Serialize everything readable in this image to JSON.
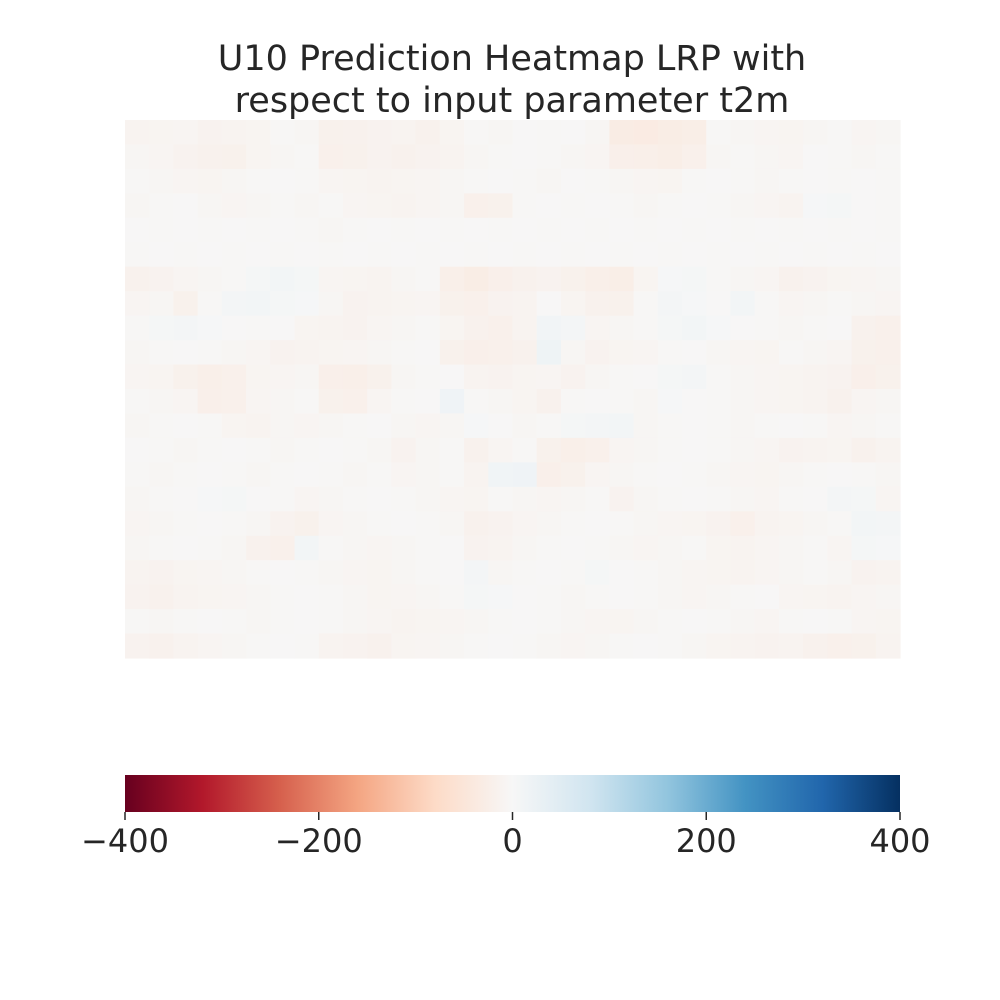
{
  "chart_data": {
    "type": "heatmap",
    "title_lines": [
      "U10 Prediction Heatmap LRP with",
      "respect to input parameter t2m"
    ],
    "xlabel": "",
    "ylabel": "",
    "grid": false,
    "value_range": [
      -400,
      400
    ],
    "colormap": "RdBu",
    "colorbar": {
      "orientation": "horizontal",
      "placement": "bottom",
      "ticks": [
        -400,
        -200,
        0,
        200,
        400
      ],
      "tick_labels": [
        "−400",
        "−200",
        "0",
        "200",
        "400"
      ],
      "stops": [
        "#67001f",
        "#b2182b",
        "#d6604d",
        "#f4a582",
        "#fddbc7",
        "#f7f7f7",
        "#d1e5f0",
        "#92c5de",
        "#4393c3",
        "#2166ac",
        "#053061"
      ]
    },
    "shape": [
      22,
      32
    ],
    "values": [
      [
        -12,
        -10,
        -8,
        -14,
        -12,
        -10,
        -4,
        -6,
        -18,
        -16,
        -14,
        -12,
        -16,
        -10,
        -4,
        -6,
        -2,
        -4,
        -2,
        -6,
        -32,
        -34,
        -30,
        -26,
        -4,
        -6,
        -8,
        -10,
        -6,
        -4,
        -8,
        -6
      ],
      [
        -6,
        -8,
        -14,
        -16,
        -18,
        -10,
        -6,
        -4,
        -20,
        -18,
        -14,
        -16,
        -14,
        -12,
        -6,
        -4,
        -2,
        -4,
        -6,
        -8,
        -22,
        -24,
        -26,
        -20,
        -6,
        -4,
        -6,
        -8,
        -2,
        -4,
        -6,
        -4
      ],
      [
        -4,
        -6,
        -8,
        -10,
        -6,
        -4,
        -2,
        -4,
        -8,
        -10,
        -12,
        -10,
        -8,
        -6,
        -4,
        -2,
        -4,
        -6,
        -2,
        -4,
        -6,
        -8,
        -10,
        -4,
        -2,
        -4,
        -6,
        -4,
        -2,
        -4,
        -2,
        -4
      ],
      [
        -6,
        -4,
        -2,
        -6,
        -8,
        -6,
        -4,
        -6,
        -4,
        -8,
        -10,
        -12,
        -8,
        -6,
        -20,
        -18,
        -4,
        -2,
        -4,
        -2,
        -4,
        -6,
        -4,
        -2,
        -4,
        -6,
        -8,
        -12,
        4,
        6,
        -2,
        -4
      ],
      [
        -2,
        -4,
        -2,
        -4,
        -2,
        -4,
        -2,
        -4,
        -6,
        -4,
        -2,
        -4,
        -2,
        -4,
        -2,
        -4,
        -2,
        -4,
        -2,
        -4,
        -2,
        -4,
        -2,
        -4,
        -2,
        -4,
        -2,
        -4,
        -2,
        -4,
        -2,
        -4
      ],
      [
        -4,
        -2,
        -4,
        -2,
        -4,
        -2,
        -4,
        -2,
        -4,
        -2,
        -4,
        -2,
        -4,
        -2,
        -4,
        -2,
        -4,
        -2,
        -4,
        -2,
        -4,
        -2,
        -4,
        -2,
        -4,
        -2,
        -4,
        -2,
        -4,
        -2,
        -4,
        -2
      ],
      [
        -16,
        -14,
        -8,
        -6,
        -4,
        6,
        10,
        6,
        -8,
        -10,
        -12,
        -6,
        -4,
        -24,
        -30,
        -22,
        -16,
        -14,
        -18,
        -24,
        -26,
        -10,
        4,
        6,
        -4,
        -6,
        -8,
        -16,
        -14,
        -10,
        -8,
        -6
      ],
      [
        -8,
        -6,
        -18,
        -4,
        8,
        10,
        6,
        4,
        -6,
        -14,
        -12,
        -10,
        -8,
        -18,
        -20,
        -14,
        -12,
        -2,
        -10,
        -16,
        -18,
        -4,
        8,
        4,
        -2,
        10,
        -4,
        -8,
        -6,
        -4,
        -6,
        -8
      ],
      [
        -4,
        6,
        8,
        4,
        -2,
        -4,
        -2,
        -10,
        -12,
        -14,
        -8,
        -6,
        -4,
        -10,
        -16,
        -20,
        -12,
        12,
        8,
        -8,
        -6,
        -4,
        6,
        10,
        4,
        -2,
        -4,
        -6,
        -4,
        -2,
        -16,
        -20
      ],
      [
        -6,
        -4,
        -2,
        -4,
        -6,
        -8,
        -14,
        -12,
        -10,
        -8,
        -6,
        -4,
        -2,
        -18,
        -22,
        -20,
        -16,
        18,
        -6,
        -14,
        -10,
        -8,
        -4,
        -2,
        -6,
        -8,
        -10,
        -4,
        -6,
        -8,
        -18,
        -20
      ],
      [
        -8,
        -10,
        -18,
        -24,
        -20,
        -10,
        -8,
        -6,
        -22,
        -24,
        -18,
        -6,
        -4,
        -2,
        -12,
        -14,
        -10,
        -8,
        -14,
        -6,
        -4,
        -2,
        6,
        8,
        -4,
        -6,
        -8,
        -10,
        -12,
        -14,
        -22,
        -18
      ],
      [
        -4,
        -6,
        -8,
        -22,
        -20,
        -8,
        -6,
        -4,
        -18,
        -20,
        -8,
        -4,
        -2,
        16,
        -4,
        -6,
        -10,
        -16,
        -4,
        -2,
        -4,
        -6,
        4,
        -2,
        -4,
        -6,
        -8,
        -10,
        -12,
        -16,
        -8,
        -6
      ],
      [
        -6,
        -4,
        -2,
        -4,
        -10,
        -12,
        -6,
        -8,
        -6,
        -4,
        -2,
        -6,
        -8,
        -6,
        4,
        -2,
        -6,
        -4,
        6,
        8,
        10,
        -6,
        -4,
        -2,
        -4,
        -6,
        -4,
        -2,
        -4,
        -8,
        -6,
        -4
      ],
      [
        -2,
        -4,
        -6,
        -4,
        -2,
        -4,
        -6,
        -4,
        -2,
        -4,
        -6,
        -14,
        -6,
        -4,
        -16,
        -8,
        -4,
        -18,
        -24,
        -20,
        -8,
        -6,
        -4,
        -2,
        -4,
        -6,
        -8,
        -14,
        -12,
        -10,
        -16,
        -12
      ],
      [
        -4,
        -6,
        -4,
        -2,
        -4,
        -6,
        -4,
        -2,
        -4,
        -6,
        -4,
        -8,
        -6,
        -4,
        -12,
        14,
        16,
        -22,
        -18,
        -8,
        -6,
        -4,
        -2,
        -4,
        -6,
        -8,
        -10,
        -6,
        -4,
        -2,
        -4,
        -6
      ],
      [
        -6,
        -4,
        -2,
        4,
        6,
        -2,
        -4,
        -8,
        -6,
        -4,
        -2,
        -4,
        -6,
        -8,
        -10,
        -4,
        -6,
        -8,
        -6,
        -4,
        -14,
        -6,
        -4,
        -2,
        -4,
        -6,
        -8,
        -4,
        -2,
        8,
        6,
        -8
      ],
      [
        -8,
        -6,
        -4,
        -2,
        -4,
        -6,
        -14,
        -18,
        -8,
        -6,
        -4,
        -2,
        -4,
        -6,
        -16,
        -14,
        -8,
        -6,
        -4,
        -2,
        -4,
        -6,
        -8,
        -10,
        -14,
        -20,
        -12,
        -10,
        -6,
        -4,
        10,
        8
      ],
      [
        -6,
        -4,
        -2,
        -4,
        -6,
        -16,
        -20,
        10,
        -4,
        -6,
        -8,
        -6,
        -4,
        -2,
        -14,
        -12,
        -6,
        -4,
        -2,
        -4,
        -6,
        -8,
        -6,
        -4,
        -10,
        -12,
        -8,
        -6,
        -4,
        -8,
        6,
        4
      ],
      [
        -12,
        -14,
        -10,
        -8,
        -6,
        -4,
        -2,
        -4,
        -6,
        -8,
        -10,
        -6,
        -4,
        -2,
        8,
        -6,
        -4,
        -2,
        -4,
        6,
        -2,
        -4,
        -6,
        -8,
        -10,
        -12,
        -8,
        -6,
        -4,
        -6,
        -14,
        -12
      ],
      [
        -14,
        -16,
        -12,
        -10,
        -8,
        -6,
        -4,
        -2,
        -4,
        -6,
        -10,
        -8,
        -6,
        -4,
        6,
        4,
        -2,
        -4,
        -6,
        -4,
        -2,
        -4,
        -6,
        -8,
        -6,
        -4,
        -2,
        -8,
        -10,
        -12,
        -8,
        -6
      ],
      [
        -4,
        -6,
        -4,
        -2,
        -4,
        -6,
        -4,
        -2,
        -4,
        -6,
        -8,
        -12,
        -10,
        -8,
        -6,
        -4,
        -2,
        -4,
        -6,
        -8,
        -10,
        -6,
        -4,
        -2,
        -4,
        -6,
        -8,
        -4,
        -2,
        -4,
        -8,
        -10
      ],
      [
        -14,
        -16,
        -12,
        -8,
        -6,
        -4,
        -2,
        -4,
        -12,
        -14,
        -16,
        -10,
        -8,
        -6,
        -4,
        -2,
        -4,
        -6,
        -8,
        -6,
        -4,
        -2,
        -4,
        -6,
        -10,
        -12,
        -14,
        -12,
        -16,
        -20,
        -18,
        -12
      ]
    ]
  }
}
